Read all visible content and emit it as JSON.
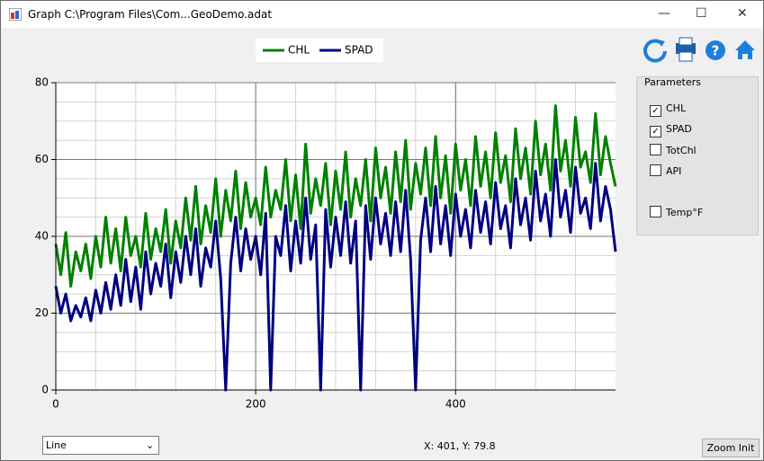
{
  "window": {
    "title": "Graph C:\\Program Files\\Com...GeoDemo.adat"
  },
  "parameters": {
    "title": "Parameters",
    "items": [
      {
        "label": "CHL",
        "checked": true
      },
      {
        "label": "SPAD",
        "checked": true
      },
      {
        "label": "TotChl",
        "checked": false
      },
      {
        "label": "API",
        "checked": false
      },
      {
        "label": "Temp°F",
        "checked": false
      }
    ]
  },
  "controls": {
    "chart_type": "Line",
    "cursor": "X: 401, Y: 79.8",
    "zoom_button": "Zoom  Init"
  },
  "chart_data": {
    "type": "line",
    "grid": true,
    "x": [
      0,
      5,
      10,
      15,
      20,
      25,
      30,
      35,
      40,
      45,
      50,
      55,
      60,
      65,
      70,
      75,
      80,
      85,
      90,
      95,
      100,
      105,
      110,
      115,
      120,
      125,
      130,
      135,
      140,
      145,
      150,
      155,
      160,
      165,
      170,
      175,
      180,
      185,
      190,
      195,
      200,
      205,
      210,
      215,
      220,
      225,
      230,
      235,
      240,
      245,
      250,
      255,
      260,
      265,
      270,
      275,
      280,
      285,
      290,
      295,
      300,
      305,
      310,
      315,
      320,
      325,
      330,
      335,
      340,
      345,
      350,
      355,
      360,
      365,
      370,
      375,
      380,
      385,
      390,
      395,
      400,
      405,
      410,
      415,
      420,
      425,
      430,
      435,
      440,
      445,
      450,
      455,
      460,
      465,
      470,
      475,
      480,
      485,
      490,
      495,
      500,
      505,
      510,
      515,
      520,
      525,
      530,
      535,
      540,
      545,
      550,
      555,
      560
    ],
    "series": [
      {
        "name": "CHL",
        "color": "#008000",
        "values": [
          38,
          30,
          41,
          27,
          36,
          31,
          38,
          29,
          40,
          32,
          45,
          33,
          42,
          31,
          45,
          35,
          40,
          32,
          46,
          34,
          42,
          36,
          47,
          33,
          44,
          37,
          50,
          39,
          53,
          38,
          48,
          41,
          55,
          40,
          52,
          44,
          57,
          42,
          54,
          45,
          50,
          43,
          58,
          45,
          52,
          47,
          60,
          44,
          56,
          42,
          64,
          46,
          55,
          48,
          59,
          43,
          57,
          47,
          62,
          45,
          55,
          48,
          60,
          44,
          63,
          50,
          58,
          46,
          62,
          49,
          65,
          47,
          59,
          51,
          63,
          48,
          66,
          50,
          61,
          46,
          64,
          52,
          60,
          48,
          66,
          53,
          62,
          50,
          67,
          54,
          61,
          49,
          68,
          55,
          63,
          51,
          70,
          56,
          64,
          52,
          74,
          57,
          65,
          53,
          71,
          58,
          62,
          54,
          72,
          56,
          66,
          59,
          53
        ]
      },
      {
        "name": "SPAD",
        "color": "#000080",
        "values": [
          27,
          20,
          25,
          18,
          22,
          19,
          24,
          18,
          26,
          20,
          28,
          21,
          30,
          22,
          34,
          23,
          32,
          21,
          36,
          25,
          33,
          27,
          38,
          24,
          36,
          28,
          40,
          30,
          42,
          27,
          37,
          32,
          44,
          29,
          0,
          33,
          45,
          31,
          42,
          34,
          40,
          30,
          46,
          0,
          40,
          35,
          48,
          31,
          44,
          33,
          50,
          34,
          43,
          0,
          47,
          32,
          45,
          35,
          49,
          33,
          44,
          0,
          48,
          34,
          50,
          38,
          46,
          35,
          49,
          36,
          52,
          34,
          0,
          39,
          50,
          36,
          53,
          38,
          48,
          35,
          51,
          40,
          47,
          37,
          52,
          41,
          49,
          38,
          54,
          42,
          48,
          37,
          55,
          43,
          50,
          39,
          57,
          44,
          51,
          40,
          60,
          45,
          52,
          41,
          58,
          46,
          50,
          42,
          59,
          44,
          53,
          47,
          36
        ]
      }
    ],
    "xlim": [
      0,
      560
    ],
    "xticks": [
      0,
      200,
      400
    ],
    "ylim": [
      0,
      80
    ],
    "yticks": [
      0,
      20,
      40,
      60,
      80
    ]
  }
}
